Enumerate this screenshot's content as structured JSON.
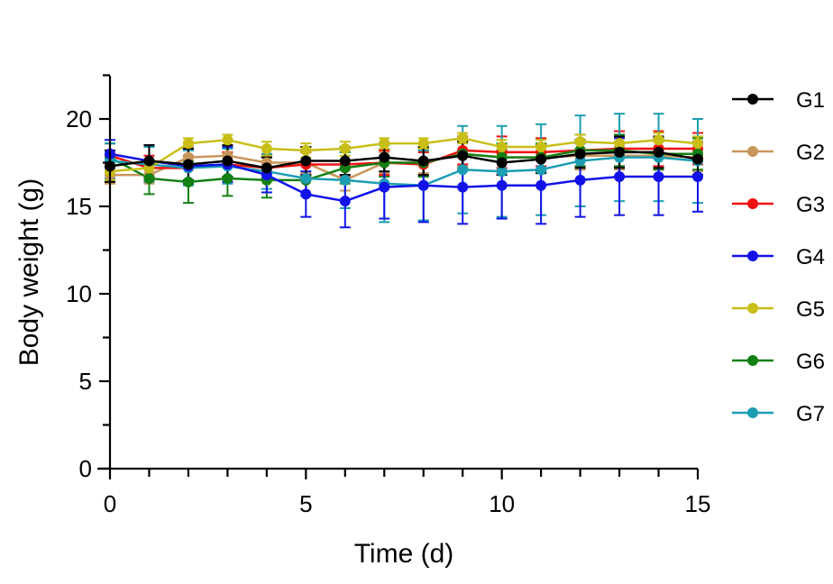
{
  "chart_data": {
    "type": "line",
    "xlabel": "Time (d)",
    "ylabel": "Body weight (g)",
    "xlim": [
      0,
      15
    ],
    "ylim": [
      0,
      22.5
    ],
    "x_ticks": [
      "0",
      "5",
      "10",
      "15"
    ],
    "y_ticks": [
      "0",
      "5",
      "10",
      "15",
      "20"
    ],
    "legend_position": "right",
    "grid": false,
    "x": [
      0,
      1,
      2,
      3,
      4,
      5,
      6,
      7,
      8,
      9,
      10,
      11,
      12,
      13,
      14,
      15
    ],
    "series": [
      {
        "name": "G2",
        "color": "#c8955a",
        "values": [
          16.8,
          16.8,
          17.8,
          17.9,
          17.5,
          17.5,
          16.5,
          17.5,
          17.5,
          18.0,
          17.8,
          17.8,
          17.9,
          17.9,
          17.9,
          17.8
        ],
        "errors": [
          0.5,
          0.5,
          0.6,
          0.6,
          0.5,
          0.6,
          0.6,
          0.6,
          0.6,
          0.7,
          0.7,
          0.8,
          0.8,
          0.8,
          0.8,
          0.8
        ]
      },
      {
        "name": "G3",
        "color": "#ee1111",
        "values": [
          17.9,
          17.2,
          17.2,
          17.4,
          17.2,
          17.4,
          17.4,
          17.5,
          17.4,
          18.2,
          18.1,
          18.1,
          18.2,
          18.3,
          18.3,
          18.3
        ],
        "errors": [
          0.7,
          0.7,
          0.7,
          0.7,
          0.7,
          0.7,
          0.7,
          0.7,
          0.7,
          0.8,
          0.9,
          0.8,
          0.9,
          1.0,
          1.0,
          0.9
        ]
      },
      {
        "name": "G6",
        "color": "#138013",
        "values": [
          17.8,
          16.6,
          16.4,
          16.6,
          16.5,
          16.5,
          17.2,
          17.5,
          17.5,
          18.0,
          17.8,
          17.8,
          18.2,
          18.2,
          18.0,
          18.0
        ],
        "errors": [
          0.8,
          0.9,
          1.2,
          1.0,
          1.0,
          0.9,
          0.9,
          0.8,
          0.8,
          0.8,
          0.8,
          0.8,
          0.9,
          0.9,
          0.9,
          0.9
        ]
      },
      {
        "name": "G7",
        "color": "#1b9db2",
        "values": [
          17.6,
          17.4,
          17.2,
          17.3,
          17.0,
          16.6,
          16.5,
          16.3,
          16.2,
          17.1,
          17.0,
          17.1,
          17.6,
          17.8,
          17.8,
          17.6
        ],
        "errors": [
          1.0,
          1.0,
          1.0,
          1.0,
          1.0,
          1.0,
          1.6,
          2.2,
          2.0,
          2.5,
          2.6,
          2.6,
          2.6,
          2.5,
          2.5,
          2.4
        ]
      },
      {
        "name": "G4",
        "color": "#1212e8",
        "values": [
          18.0,
          17.6,
          17.3,
          17.4,
          16.8,
          15.7,
          15.3,
          16.1,
          16.2,
          16.1,
          16.2,
          16.2,
          16.5,
          16.7,
          16.7,
          16.7
        ],
        "errors": [
          0.8,
          0.9,
          1.0,
          1.0,
          1.0,
          1.3,
          1.5,
          1.8,
          2.1,
          2.1,
          1.9,
          2.2,
          2.1,
          2.2,
          2.2,
          2.0
        ]
      },
      {
        "name": "G5",
        "color": "#c8be16",
        "values": [
          17.0,
          17.2,
          18.6,
          18.8,
          18.3,
          18.2,
          18.3,
          18.6,
          18.6,
          18.9,
          18.4,
          18.4,
          18.7,
          18.6,
          18.8,
          18.6
        ],
        "errors": [
          0.5,
          0.4,
          0.3,
          0.3,
          0.4,
          0.4,
          0.4,
          0.3,
          0.3,
          0.3,
          0.4,
          0.4,
          0.4,
          0.4,
          0.4,
          0.4
        ]
      },
      {
        "name": "G1",
        "color": "#000000",
        "values": [
          17.3,
          17.6,
          17.4,
          17.6,
          17.2,
          17.6,
          17.6,
          17.8,
          17.6,
          17.9,
          17.5,
          17.7,
          18.0,
          18.1,
          18.1,
          17.7
        ],
        "errors": [
          0.9,
          0.9,
          0.9,
          0.9,
          0.6,
          0.8,
          0.8,
          0.8,
          0.8,
          0.8,
          0.7,
          0.8,
          0.8,
          0.9,
          0.9,
          0.9
        ]
      }
    ],
    "legend_order": [
      "G1",
      "G2",
      "G3",
      "G4",
      "G5",
      "G6",
      "G7"
    ]
  }
}
